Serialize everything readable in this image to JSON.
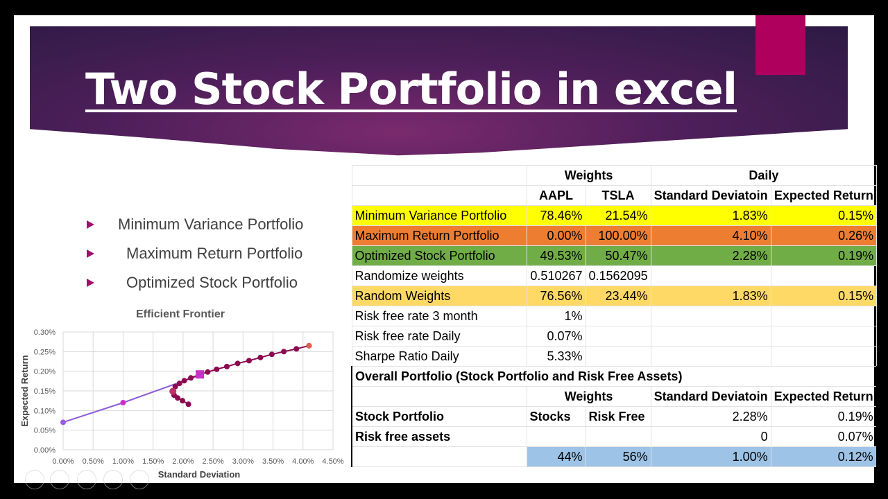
{
  "slide": {
    "title": "Two Stock Portfolio in excel",
    "bullets": [
      "Minimum Variance Portfolio",
      "Maximum Return Portfolio",
      "Optimized Stock Portfolio"
    ]
  },
  "table": {
    "group_weights": "Weights",
    "group_daily": "Daily",
    "headers": [
      "AAPL",
      "TSLA",
      "Standard Deviatoin",
      "Expected Return"
    ],
    "rows": [
      {
        "label": "Minimum Variance Portfolio",
        "aapl": "78.46%",
        "tsla": "21.54%",
        "sd": "1.83%",
        "er": "0.15%",
        "color": "#ffff00"
      },
      {
        "label": "Maximum Return Portfolio",
        "aapl": "0.00%",
        "tsla": "100.00%",
        "sd": "4.10%",
        "er": "0.26%",
        "color": "#ed7d31"
      },
      {
        "label": "Optimized Stock Portfolio",
        "aapl": "49.53%",
        "tsla": "50.47%",
        "sd": "2.28%",
        "er": "0.19%",
        "color": "#70ad47"
      },
      {
        "label": "Randomize weights",
        "aapl": "0.510267",
        "tsla": "0.1562095",
        "sd": "",
        "er": ""
      },
      {
        "label": "Random Weights",
        "aapl": "76.56%",
        "tsla": "23.44%",
        "sd": "1.83%",
        "er": "0.15%",
        "color": "#ffd966"
      },
      {
        "label": "Risk free rate 3 month",
        "aapl": "1%"
      },
      {
        "label": "Risk free rate Daily",
        "aapl": "0.07%"
      },
      {
        "label": "Sharpe Ratio Daily",
        "aapl": "5.33%"
      }
    ],
    "overall": {
      "title": "Overall Portfolio (Stock Portfolio and Risk Free Assets)",
      "weights": "Weights",
      "sd": "Standard Deviatoin",
      "er": "Expected Return",
      "stock_label": "Stock Portfolio",
      "stocks": "Stocks",
      "risk_free": "Risk Free",
      "stock_sd": "2.28%",
      "stock_er": "0.19%",
      "rf_label": "Risk free assets",
      "rf_sd": "0",
      "rf_er": "0.07%",
      "total_stocks": "44%",
      "total_rf": "56%",
      "total_sd": "1.00%",
      "total_er": "0.12%",
      "highlight": "#9dc3e6"
    }
  },
  "chart_data": {
    "type": "scatter",
    "title": "Efficient Frontier",
    "xlabel": "Standard Deviation",
    "ylabel": "Expected Return",
    "xlim": [
      0,
      4.5
    ],
    "ylim": [
      0,
      0.3
    ],
    "x_unit": "%",
    "y_unit": "%",
    "xticks": [
      "0.00%",
      "0.50%",
      "1.00%",
      "1.50%",
      "2.00%",
      "2.50%",
      "3.00%",
      "3.50%",
      "4.00%",
      "4.50%"
    ],
    "yticks": [
      "0.00%",
      "0.05%",
      "0.10%",
      "0.15%",
      "0.20%",
      "0.25%",
      "0.30%"
    ],
    "grid": true,
    "series": [
      {
        "kind": "frontier",
        "color": "#8b0a50",
        "x": [
          2.09,
          1.99,
          1.91,
          1.85,
          1.83,
          1.87,
          1.94,
          2.02,
          2.13,
          2.28,
          2.41,
          2.56,
          2.73,
          2.91,
          3.1,
          3.29,
          3.48,
          3.68,
          3.89,
          4.1
        ],
        "y": [
          0.116,
          0.125,
          0.132,
          0.139,
          0.149,
          0.161,
          0.169,
          0.176,
          0.183,
          0.192,
          0.198,
          0.205,
          0.212,
          0.22,
          0.227,
          0.235,
          0.243,
          0.25,
          0.257,
          0.265
        ]
      },
      {
        "kind": "capital-allocation-line",
        "color": "#8e5bd6",
        "x": [
          0,
          1.0,
          2.28
        ],
        "y": [
          0.07,
          0.12,
          0.19
        ]
      }
    ],
    "markers": {
      "min_variance": {
        "x": 1.83,
        "y": 0.149,
        "color": "#c0306a"
      },
      "max_return": {
        "x": 4.1,
        "y": 0.265,
        "color": "#e0604a"
      },
      "optimized": {
        "x": 2.28,
        "y": 0.192,
        "color": "#c832c8"
      }
    }
  }
}
